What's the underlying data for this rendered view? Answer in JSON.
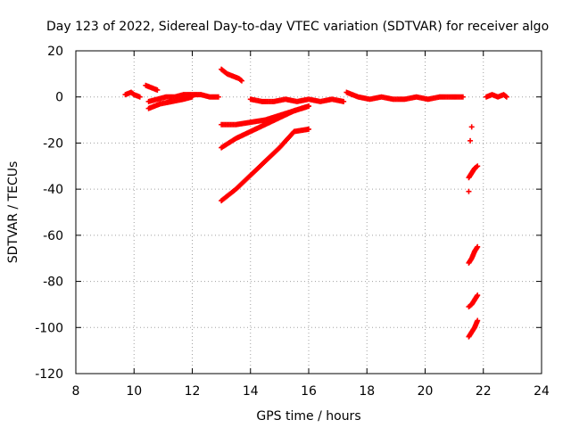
{
  "chart_data": {
    "type": "scatter",
    "title": "Day 123 of 2022, Sidereal Day-to-day VTEC variation (SDTVAR) for receiver algo",
    "xlabel": "GPS time / hours",
    "ylabel": "SDTVAR / TECUs",
    "xlim": [
      8,
      24
    ],
    "ylim": [
      -120,
      20
    ],
    "xticks": [
      8,
      10,
      12,
      14,
      16,
      18,
      20,
      22,
      24
    ],
    "yticks": [
      20,
      0,
      -20,
      -40,
      -60,
      -80,
      -100,
      -120
    ],
    "grid": true,
    "series": [
      {
        "name": "SDTVAR",
        "color": "#ff0000",
        "marker": "plus",
        "segments": [
          {
            "x": [
              9.7,
              9.9,
              10.0,
              10.2
            ],
            "y": [
              1,
              2,
              1,
              0
            ]
          },
          {
            "x": [
              10.4,
              10.6,
              10.8
            ],
            "y": [
              5,
              4,
              3
            ]
          },
          {
            "x": [
              10.5,
              10.8,
              11.1,
              11.4,
              11.7,
              12.0,
              12.3,
              12.6,
              12.9
            ],
            "y": [
              -2,
              -1,
              0,
              0,
              1,
              1,
              1,
              0,
              0
            ]
          },
          {
            "x": [
              10.5,
              10.9,
              11.3,
              11.7,
              12.0
            ],
            "y": [
              -5,
              -3,
              -2,
              -1,
              0
            ]
          },
          {
            "x": [
              13.0,
              13.2,
              13.4,
              13.6,
              13.7
            ],
            "y": [
              12,
              10,
              9,
              8,
              7
            ]
          },
          {
            "x": [
              14.0,
              14.4,
              14.8,
              15.2,
              15.6,
              16.0,
              16.4,
              16.8,
              17.2
            ],
            "y": [
              -1,
              -2,
              -2,
              -1,
              -2,
              -1,
              -2,
              -1,
              -2
            ]
          },
          {
            "x": [
              17.3,
              17.7,
              18.1,
              18.5,
              18.9,
              19.3,
              19.7,
              20.1,
              20.5,
              20.9,
              21.3
            ],
            "y": [
              2,
              0,
              -1,
              0,
              -1,
              -1,
              0,
              -1,
              0,
              0,
              0
            ]
          },
          {
            "x": [
              13.0,
              13.5,
              14.0,
              14.5,
              15.0,
              15.5,
              16.0
            ],
            "y": [
              -12,
              -12,
              -11,
              -10,
              -8,
              -6,
              -4
            ]
          },
          {
            "x": [
              13.0,
              13.5,
              14.0,
              14.5,
              15.0,
              15.5,
              16.0
            ],
            "y": [
              -22,
              -18,
              -15,
              -12,
              -9,
              -6,
              -4
            ]
          },
          {
            "x": [
              13.0,
              13.5,
              14.0,
              14.5,
              15.0,
              15.5,
              16.0
            ],
            "y": [
              -45,
              -40,
              -34,
              -28,
              -22,
              -15,
              -14
            ]
          },
          {
            "x": [
              21.6
            ],
            "y": [
              -13
            ]
          },
          {
            "x": [
              21.55
            ],
            "y": [
              -19
            ]
          },
          {
            "x": [
              21.5,
              21.6,
              21.7,
              21.8
            ],
            "y": [
              -35,
              -33,
              -31,
              -30
            ]
          },
          {
            "x": [
              21.5
            ],
            "y": [
              -41
            ]
          },
          {
            "x": [
              21.5,
              21.6,
              21.7,
              21.8
            ],
            "y": [
              -72,
              -70,
              -67,
              -65
            ]
          },
          {
            "x": [
              21.5,
              21.6,
              21.7,
              21.8
            ],
            "y": [
              -91,
              -90,
              -88,
              -86
            ]
          },
          {
            "x": [
              21.5,
              21.6,
              21.7,
              21.8
            ],
            "y": [
              -104,
              -102,
              -100,
              -97
            ]
          },
          {
            "x": [
              22.1,
              22.3,
              22.5,
              22.7,
              22.8
            ],
            "y": [
              0,
              1,
              0,
              1,
              0
            ]
          }
        ]
      }
    ]
  }
}
